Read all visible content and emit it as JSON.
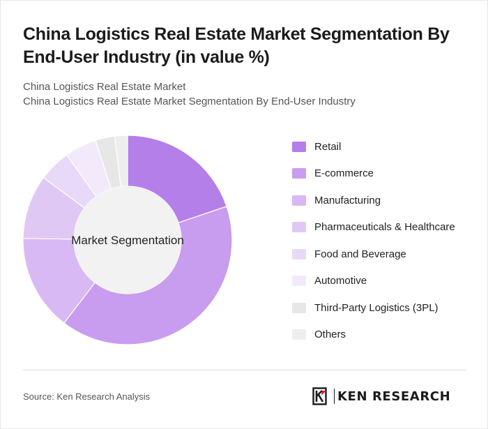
{
  "title": "China Logistics Real Estate Market Segmentation By End-User Industry (in value %)",
  "subtitle_line1": "China Logistics Real Estate Market",
  "subtitle_line2": "China Logistics Real Estate Market Segmentation By End-User Industry",
  "source": "Source: Ken Research Analysis",
  "logo_text": "KEN RESEARCH",
  "chart_data": {
    "type": "pie",
    "center_label": "Market Segmentation",
    "categories": [
      "Retail",
      "E-commerce",
      "Manufacturing",
      "Pharmaceuticals & Healthcare",
      "Food and Beverage",
      "Automotive",
      "Third-Party Logistics (3PL)",
      "Others"
    ],
    "values": [
      20,
      41,
      15,
      10,
      5,
      5,
      3,
      2
    ],
    "colors": [
      "#b47fe8",
      "#c89cef",
      "#d9b9f4",
      "#e0c8f5",
      "#e9d9f8",
      "#f2eafb",
      "#e7e7e7",
      "#eeeeee"
    ],
    "legend": "right"
  }
}
